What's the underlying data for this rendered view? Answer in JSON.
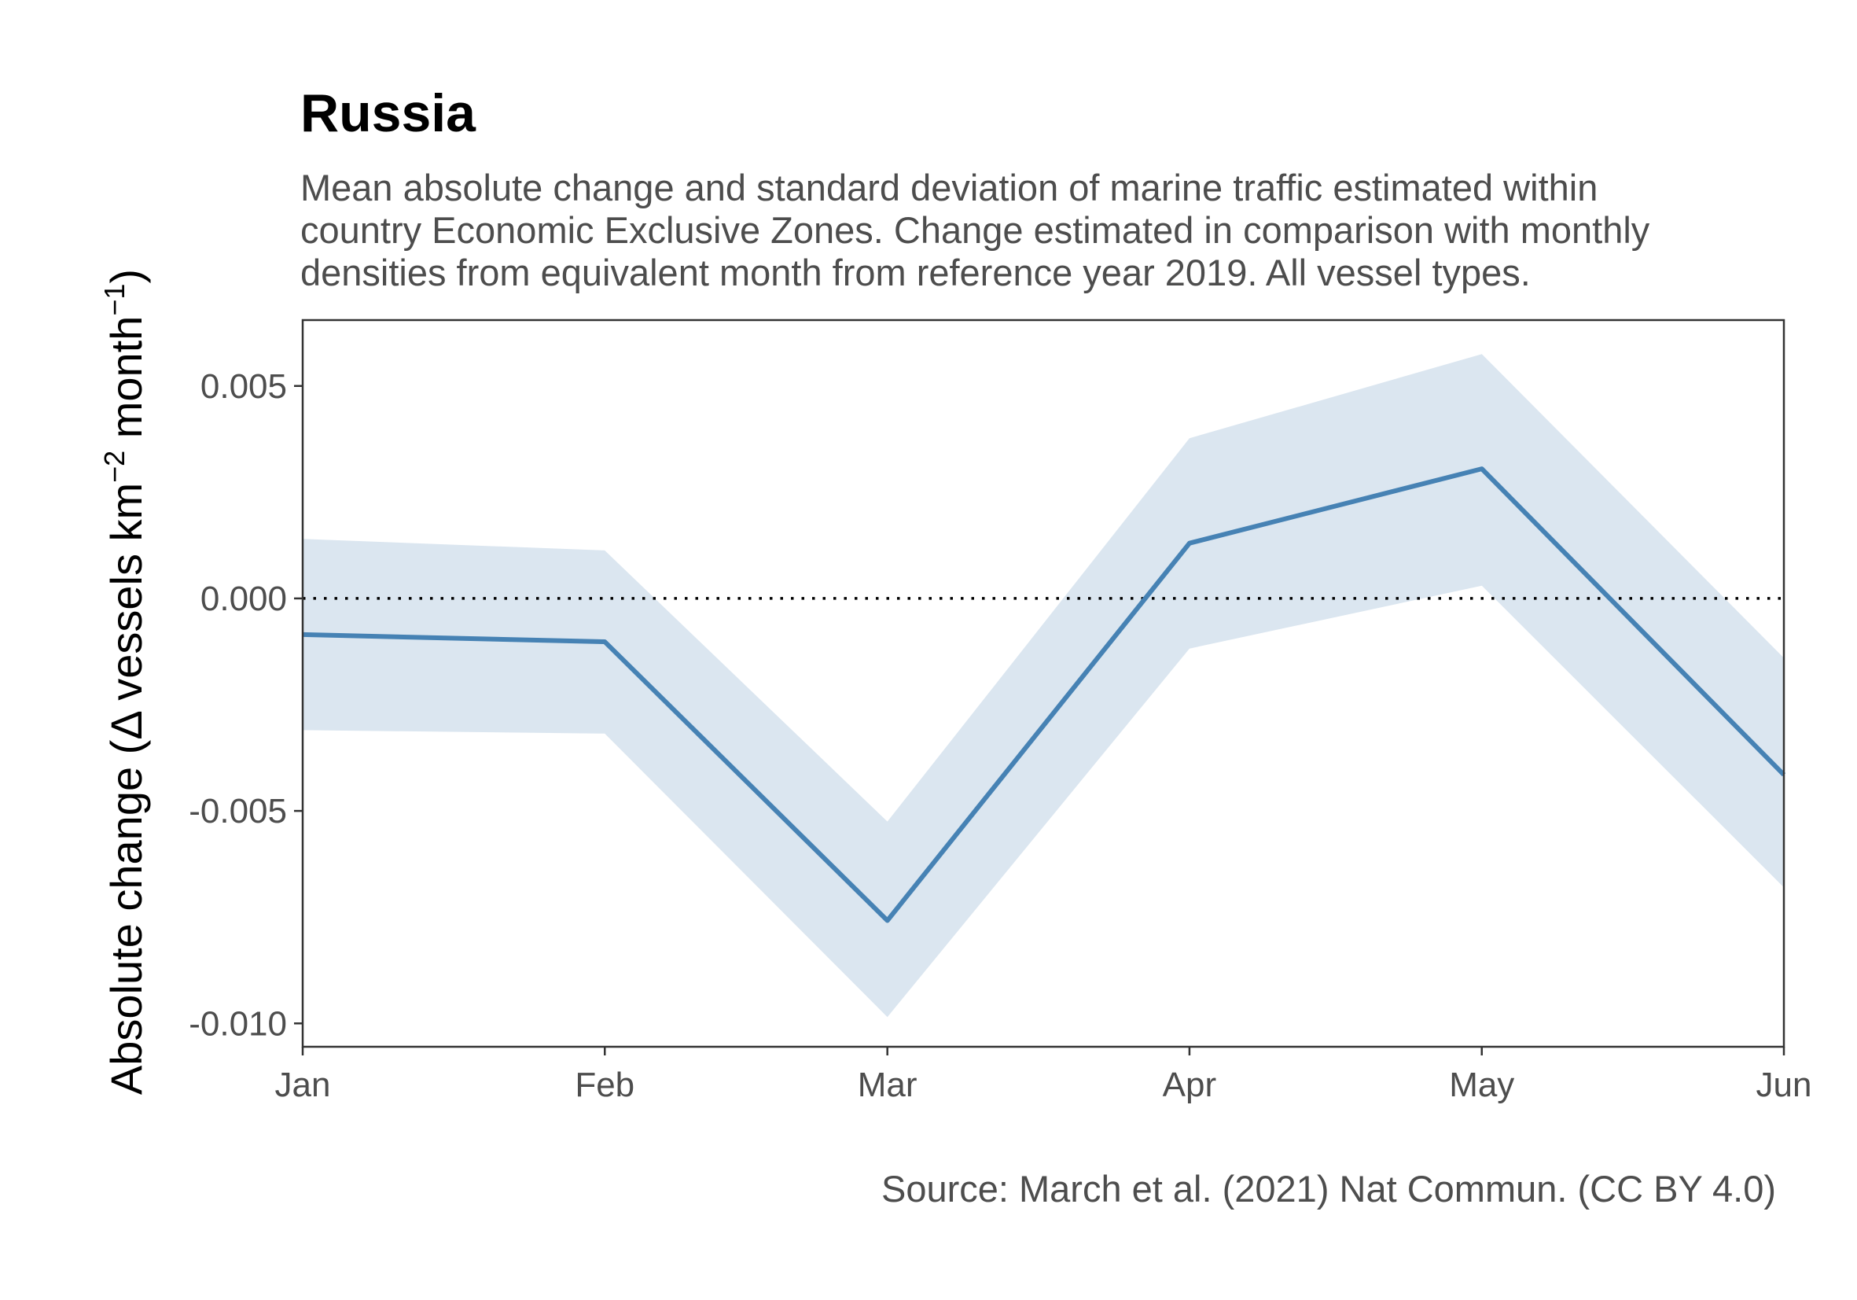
{
  "chart_data": {
    "type": "line",
    "title": "Russia",
    "subtitle_lines": [
      "Mean absolute change and standard deviation of marine traffic estimated within",
      "country Economic Exclusive Zones. Change estimated in comparison with monthly",
      "densities from equivalent month from reference year 2019. All vessel types."
    ],
    "caption": "Source: March et al. (2021) Nat Commun. (CC BY 4.0)",
    "ylabel": {
      "prefix": "Absolute change (",
      "delta": "Δ",
      "text1": " vessels km",
      "sup1": "−2",
      "text2": " month",
      "sup2": "−1",
      "suffix": ")"
    },
    "xlabel": "",
    "categories": [
      "Jan",
      "Feb",
      "Mar",
      "Apr",
      "May",
      "Jun"
    ],
    "x_positions": [
      0,
      31,
      60,
      91,
      121,
      152
    ],
    "series": [
      {
        "mean": [
          -0.00085,
          -0.00102,
          -0.00758,
          0.0013,
          0.00305,
          -0.00415
        ],
        "sd_lower": [
          -0.0031,
          -0.00318,
          -0.00985,
          -0.00118,
          0.0003,
          -0.0068
        ],
        "sd_upper": [
          0.0014,
          0.00113,
          -0.00525,
          0.00377,
          0.00575,
          -0.0014
        ],
        "line_color": "#4682b4",
        "band_color": "#dbe6f0"
      }
    ],
    "reference_line": {
      "y": 0,
      "style": "dotted",
      "color": "#000000"
    },
    "xlim": [
      0,
      152
    ],
    "ylim": [
      -0.01055,
      0.00655
    ],
    "yticks": [
      {
        "value": -0.01,
        "label": "-0.010"
      },
      {
        "value": -0.005,
        "label": "-0.005"
      },
      {
        "value": 0.0,
        "label": "0.000"
      },
      {
        "value": 0.005,
        "label": "0.005"
      }
    ],
    "grid": false,
    "panel_border": true,
    "legend": "none"
  }
}
